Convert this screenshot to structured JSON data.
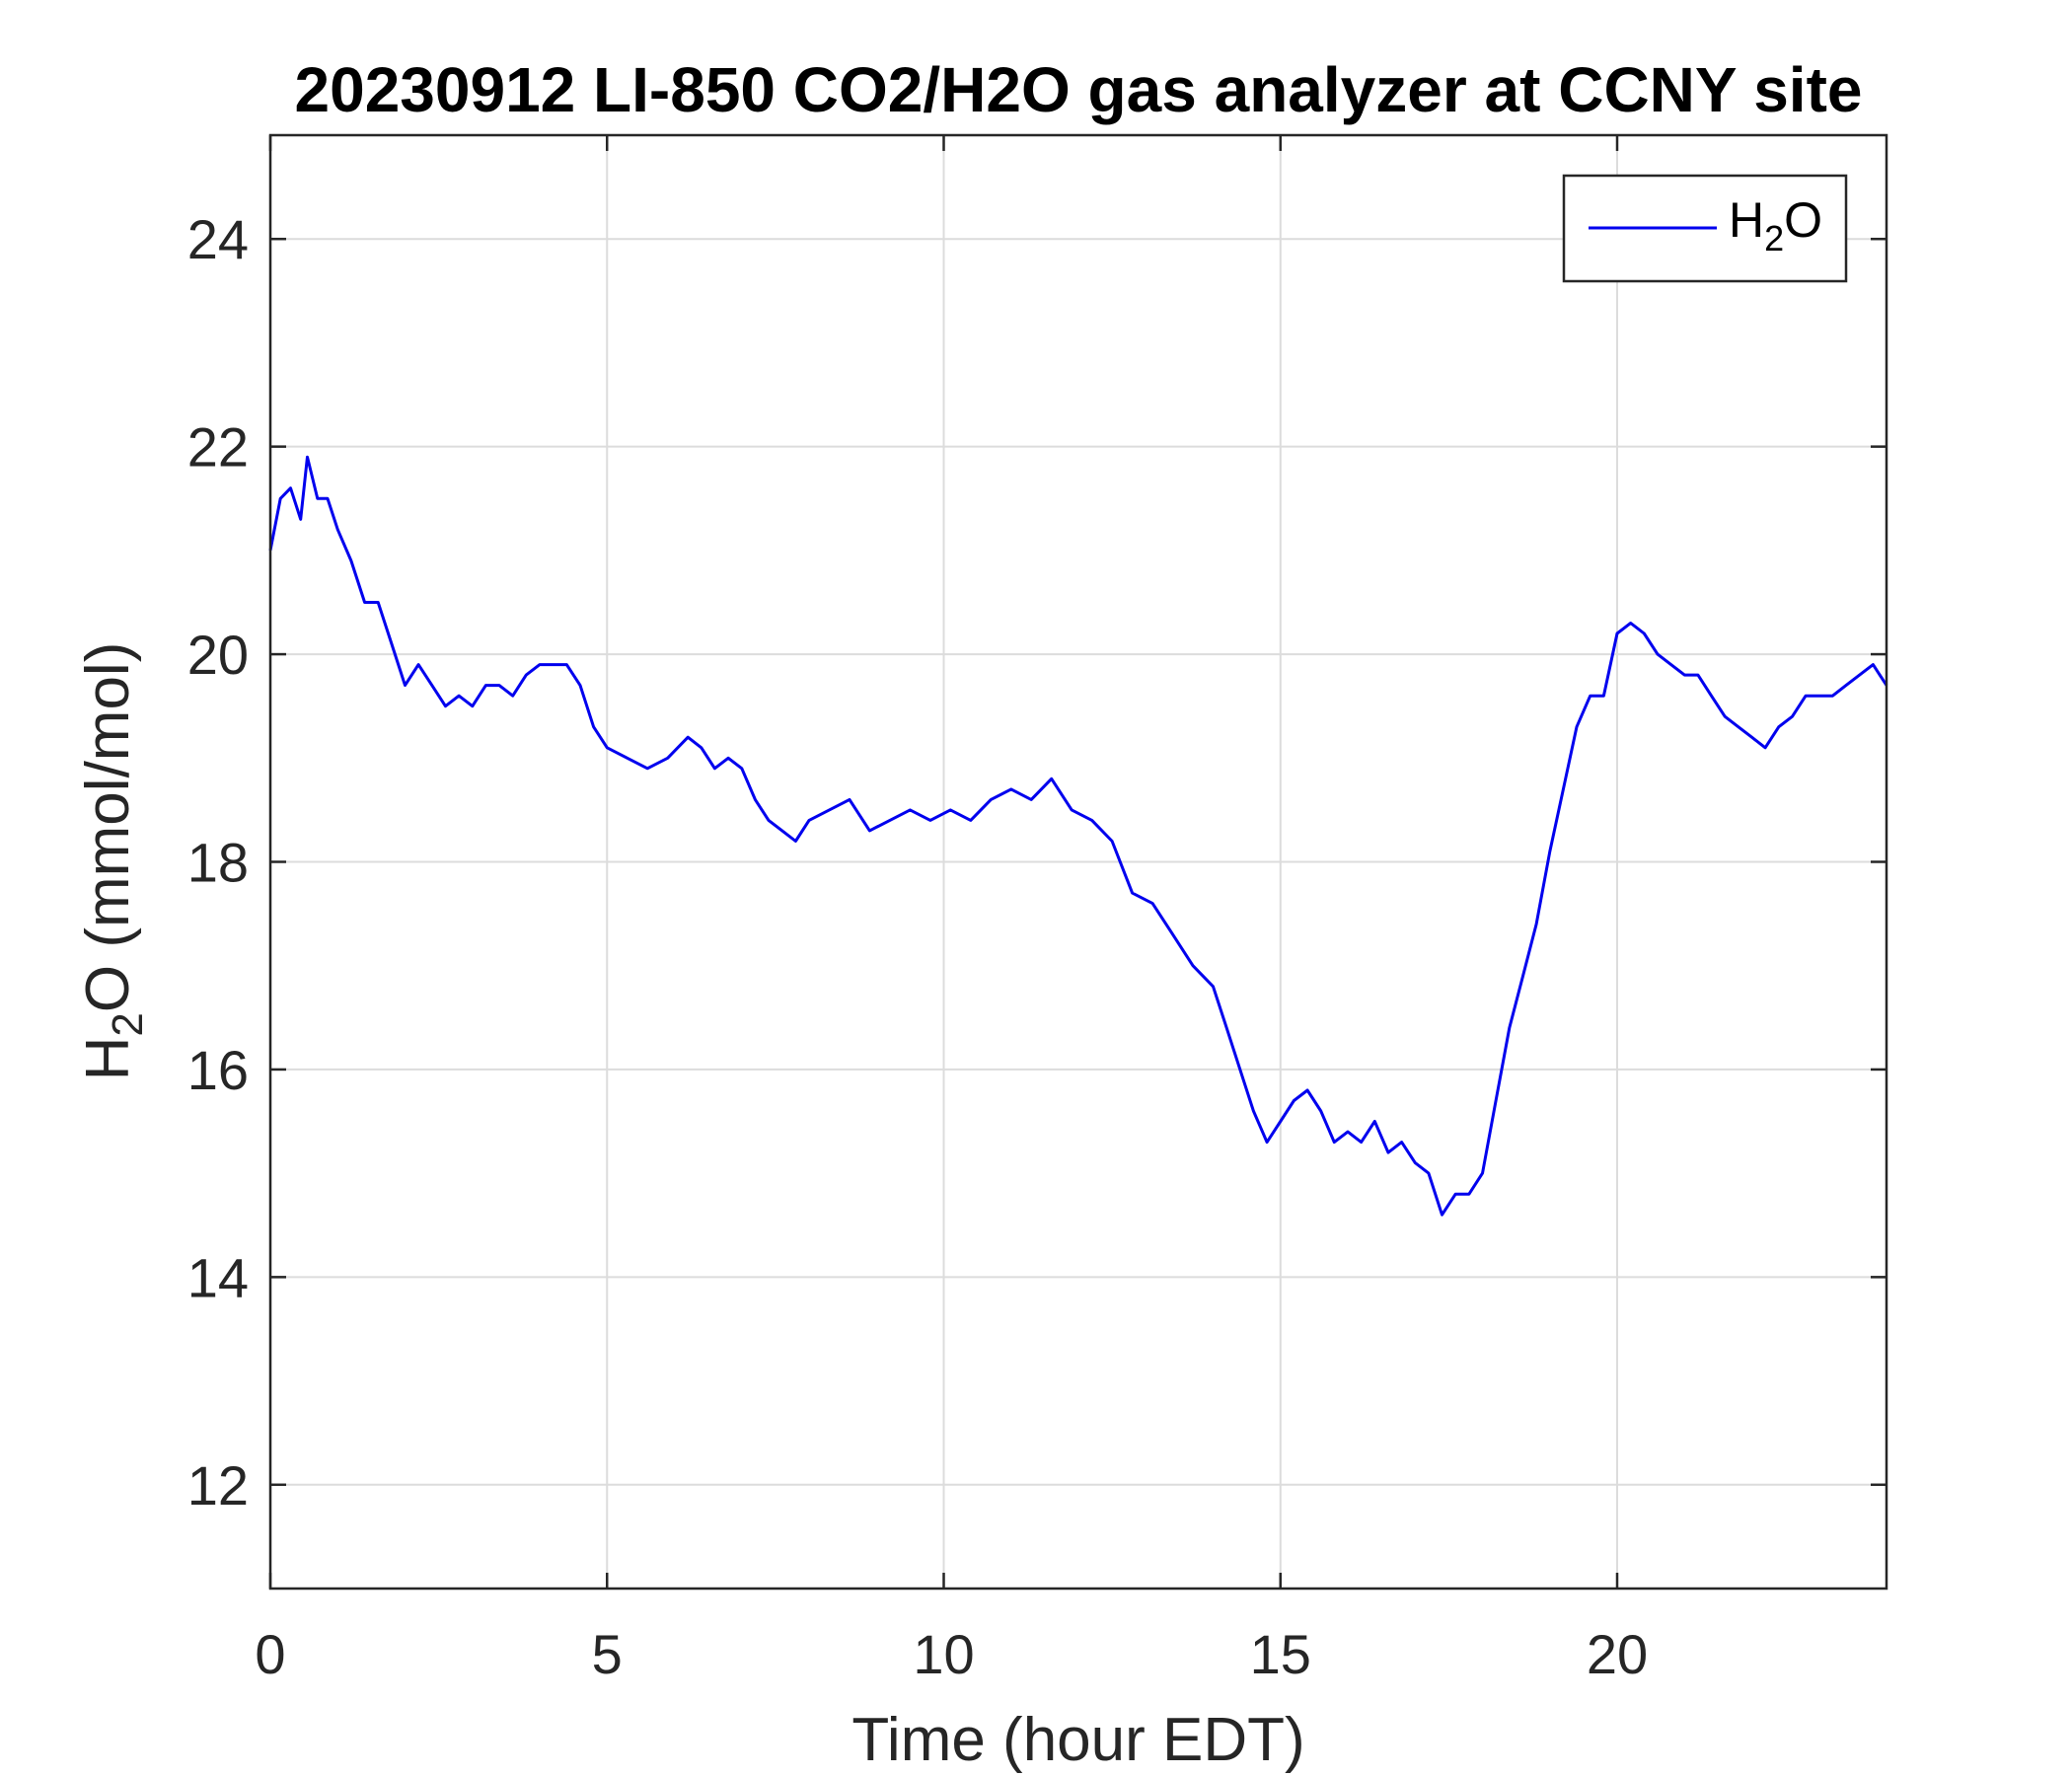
{
  "chart_data": {
    "type": "line",
    "title": "20230912 LI-850 CO2/H2O gas analyzer at CCNY site",
    "xlabel": "Time (hour EDT)",
    "ylabel": {
      "main": "H",
      "sub": "2",
      "rest": "O (mmol/mol)"
    },
    "xlim": [
      0,
      24
    ],
    "ylim": [
      11,
      25
    ],
    "xticks": [
      0,
      5,
      10,
      15,
      20
    ],
    "yticks": [
      12,
      14,
      16,
      18,
      20,
      22,
      24
    ],
    "grid": true,
    "legend_position": "top-right",
    "series": [
      {
        "name": {
          "main": "H",
          "sub": "2",
          "rest": "O"
        },
        "color": "#0000ee",
        "x": [
          0,
          0.15,
          0.3,
          0.45,
          0.55,
          0.7,
          0.85,
          1.0,
          1.2,
          1.4,
          1.6,
          1.8,
          2.0,
          2.2,
          2.4,
          2.6,
          2.8,
          3.0,
          3.2,
          3.4,
          3.6,
          3.8,
          4.0,
          4.2,
          4.4,
          4.6,
          4.8,
          5.0,
          5.3,
          5.6,
          5.9,
          6.2,
          6.4,
          6.6,
          6.8,
          7.0,
          7.2,
          7.4,
          7.6,
          7.8,
          8.0,
          8.3,
          8.6,
          8.9,
          9.2,
          9.5,
          9.8,
          10.1,
          10.4,
          10.7,
          11.0,
          11.3,
          11.6,
          11.9,
          12.2,
          12.5,
          12.8,
          13.1,
          13.4,
          13.7,
          14.0,
          14.2,
          14.4,
          14.6,
          14.8,
          15.0,
          15.2,
          15.4,
          15.6,
          15.8,
          16.0,
          16.2,
          16.4,
          16.6,
          16.8,
          17.0,
          17.2,
          17.4,
          17.6,
          17.8,
          18.0,
          18.2,
          18.4,
          18.6,
          18.8,
          19.0,
          19.2,
          19.4,
          19.6,
          19.8,
          20.0,
          20.2,
          20.4,
          20.6,
          20.8,
          21.0,
          21.2,
          21.4,
          21.6,
          21.8,
          22.0,
          22.2,
          22.4,
          22.6,
          22.8,
          23.0,
          23.2,
          23.4,
          23.6,
          23.8,
          24.0
        ],
        "y": [
          21.0,
          21.5,
          21.6,
          21.3,
          21.9,
          21.5,
          21.5,
          21.2,
          20.9,
          20.5,
          20.5,
          20.1,
          19.7,
          19.9,
          19.7,
          19.5,
          19.6,
          19.5,
          19.7,
          19.7,
          19.6,
          19.8,
          19.9,
          19.9,
          19.9,
          19.7,
          19.3,
          19.1,
          19.0,
          18.9,
          19.0,
          19.2,
          19.1,
          18.9,
          19.0,
          18.9,
          18.6,
          18.4,
          18.3,
          18.2,
          18.4,
          18.5,
          18.6,
          18.3,
          18.4,
          18.5,
          18.4,
          18.5,
          18.4,
          18.6,
          18.7,
          18.6,
          18.8,
          18.5,
          18.4,
          18.2,
          17.7,
          17.6,
          17.3,
          17.0,
          16.8,
          16.4,
          16.0,
          15.6,
          15.3,
          15.5,
          15.7,
          15.8,
          15.6,
          15.3,
          15.4,
          15.3,
          15.5,
          15.2,
          15.3,
          15.1,
          15.0,
          14.6,
          14.8,
          14.8,
          15.0,
          15.7,
          16.4,
          16.9,
          17.4,
          18.1,
          18.7,
          19.3,
          19.6,
          19.6,
          20.2,
          20.3,
          20.2,
          20.0,
          19.9,
          19.8,
          19.8,
          19.6,
          19.4,
          19.3,
          19.2,
          19.1,
          19.3,
          19.4,
          19.6,
          19.6,
          19.6,
          19.7,
          19.8,
          19.9,
          19.7
        ]
      }
    ]
  }
}
